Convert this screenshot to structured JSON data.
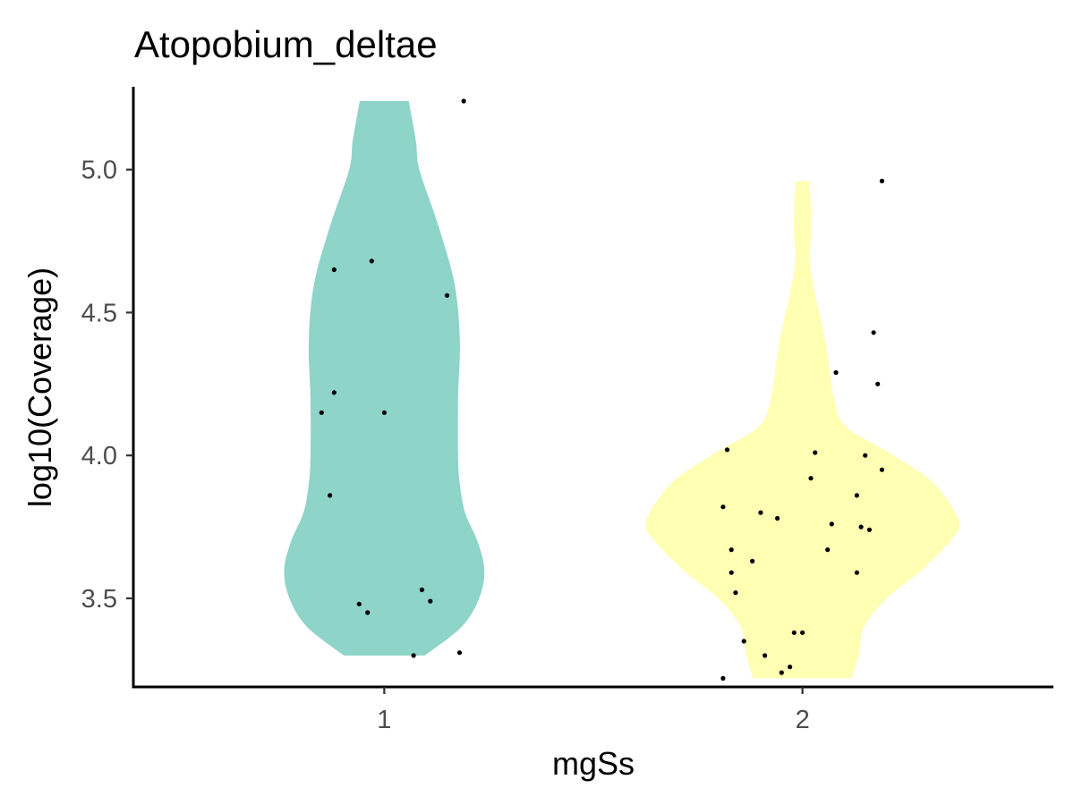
{
  "chart_data": {
    "type": "violin",
    "title": "Atopobium_deltae",
    "xlabel": "mgSs",
    "ylabel": "log10(Coverage)",
    "categories": [
      "1",
      "2"
    ],
    "ylim": [
      3.19,
      5.29
    ],
    "yticks": [
      3.5,
      4.0,
      4.5,
      5.0
    ],
    "ytick_labels": [
      "3.5",
      "4.0",
      "4.5",
      "5.0"
    ],
    "grid": false,
    "legend": "none",
    "series": [
      {
        "category": "1",
        "color": "#8ED4C8",
        "violin_profile": [
          [
            3.3,
            0.23
          ],
          [
            3.4,
            0.44
          ],
          [
            3.5,
            0.54
          ],
          [
            3.6,
            0.57
          ],
          [
            3.7,
            0.53
          ],
          [
            3.8,
            0.46
          ],
          [
            3.9,
            0.43
          ],
          [
            4.0,
            0.42
          ],
          [
            4.2,
            0.42
          ],
          [
            4.4,
            0.43
          ],
          [
            4.6,
            0.4
          ],
          [
            4.8,
            0.31
          ],
          [
            5.0,
            0.2
          ],
          [
            5.1,
            0.18
          ],
          [
            5.24,
            0.14
          ]
        ],
        "points": [
          {
            "x": 0.88,
            "y": 4.65
          },
          {
            "x": 0.97,
            "y": 4.68
          },
          {
            "x": 1.15,
            "y": 4.56
          },
          {
            "x": 0.88,
            "y": 4.22
          },
          {
            "x": 0.85,
            "y": 4.15
          },
          {
            "x": 1.0,
            "y": 4.15
          },
          {
            "x": 0.87,
            "y": 3.86
          },
          {
            "x": 1.09,
            "y": 3.53
          },
          {
            "x": 1.11,
            "y": 3.49
          },
          {
            "x": 0.94,
            "y": 3.48
          },
          {
            "x": 0.96,
            "y": 3.45
          },
          {
            "x": 1.07,
            "y": 3.3
          },
          {
            "x": 1.18,
            "y": 3.31
          },
          {
            "x": 1.19,
            "y": 5.24
          }
        ]
      },
      {
        "category": "2",
        "color": "#FFFFB3",
        "violin_profile": [
          [
            3.22,
            0.28
          ],
          [
            3.3,
            0.32
          ],
          [
            3.4,
            0.35
          ],
          [
            3.5,
            0.48
          ],
          [
            3.6,
            0.68
          ],
          [
            3.7,
            0.84
          ],
          [
            3.77,
            0.89
          ],
          [
            3.9,
            0.75
          ],
          [
            4.0,
            0.52
          ],
          [
            4.1,
            0.25
          ],
          [
            4.2,
            0.18
          ],
          [
            4.4,
            0.13
          ],
          [
            4.6,
            0.06
          ],
          [
            4.7,
            0.04
          ],
          [
            4.8,
            0.05
          ],
          [
            4.96,
            0.04
          ]
        ],
        "points": [
          {
            "x": 2.19,
            "y": 4.96
          },
          {
            "x": 2.17,
            "y": 4.43
          },
          {
            "x": 2.08,
            "y": 4.29
          },
          {
            "x": 2.18,
            "y": 4.25
          },
          {
            "x": 1.82,
            "y": 4.02
          },
          {
            "x": 2.03,
            "y": 4.01
          },
          {
            "x": 2.15,
            "y": 4.0
          },
          {
            "x": 2.19,
            "y": 3.95
          },
          {
            "x": 2.02,
            "y": 3.92
          },
          {
            "x": 2.13,
            "y": 3.86
          },
          {
            "x": 1.81,
            "y": 3.82
          },
          {
            "x": 1.9,
            "y": 3.8
          },
          {
            "x": 1.94,
            "y": 3.78
          },
          {
            "x": 2.07,
            "y": 3.76
          },
          {
            "x": 2.14,
            "y": 3.75
          },
          {
            "x": 2.16,
            "y": 3.74
          },
          {
            "x": 1.83,
            "y": 3.67
          },
          {
            "x": 2.06,
            "y": 3.67
          },
          {
            "x": 1.88,
            "y": 3.63
          },
          {
            "x": 1.83,
            "y": 3.59
          },
          {
            "x": 2.13,
            "y": 3.59
          },
          {
            "x": 1.84,
            "y": 3.52
          },
          {
            "x": 1.98,
            "y": 3.38
          },
          {
            "x": 2.0,
            "y": 3.38
          },
          {
            "x": 1.86,
            "y": 3.35
          },
          {
            "x": 1.91,
            "y": 3.3
          },
          {
            "x": 1.97,
            "y": 3.26
          },
          {
            "x": 1.95,
            "y": 3.24
          },
          {
            "x": 1.81,
            "y": 3.22
          }
        ]
      }
    ]
  }
}
